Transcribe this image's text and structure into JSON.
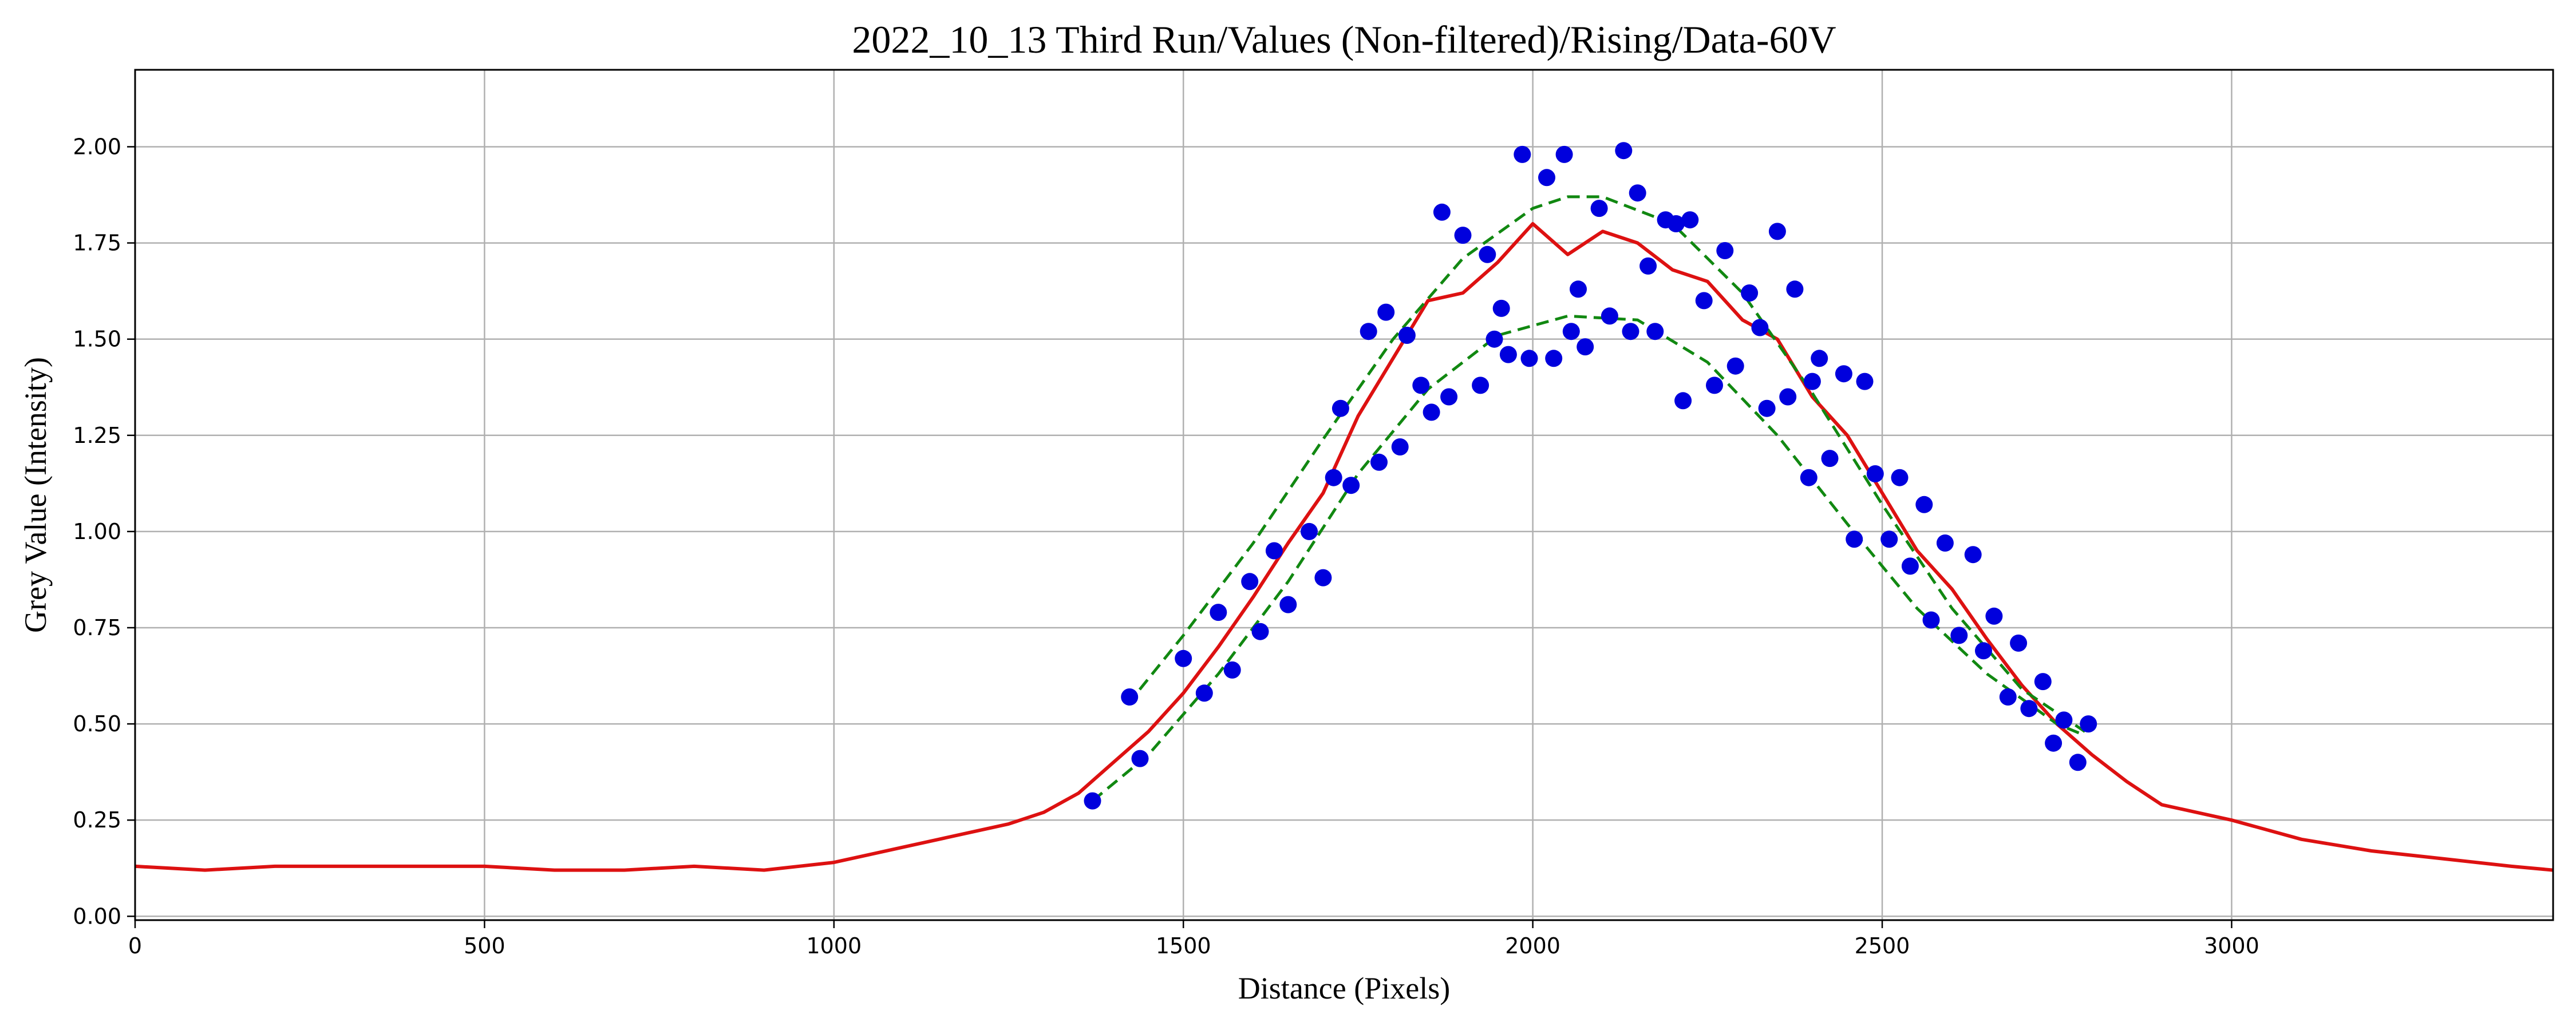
{
  "chart_data": {
    "type": "line",
    "title": "2022_10_13 Third Run/Values (Non-filtered)/Rising/Data-60V",
    "xlabel": "Distance (Pixels)",
    "ylabel": "Grey Value (Intensity)",
    "xlim": [
      0,
      3460
    ],
    "ylim": [
      -0.01,
      2.2
    ],
    "x_ticks": [
      0,
      500,
      1000,
      1500,
      2000,
      2500,
      3000
    ],
    "y_ticks": [
      0.0,
      0.25,
      0.5,
      0.75,
      1.0,
      1.25,
      1.5,
      1.75,
      2.0
    ],
    "y_tick_labels": [
      "0.00",
      "0.25",
      "0.50",
      "0.75",
      "1.00",
      "1.25",
      "1.50",
      "1.75",
      "2.00"
    ],
    "grid": true,
    "legend": "none",
    "series": [
      {
        "kind": "raw",
        "color": "#000000",
        "x": [
          0,
          100,
          200,
          300,
          400,
          500,
          600,
          700,
          800,
          900,
          1000,
          1050,
          1100,
          1150,
          1200,
          1250,
          1300,
          1350,
          1400,
          1450,
          1500,
          1550,
          1600,
          1650,
          1700,
          1750,
          1800,
          1850,
          1900,
          1950,
          2000,
          2050,
          2100,
          2150,
          2200,
          2250,
          2300,
          2350,
          2400,
          2450,
          2500,
          2550,
          2600,
          2650,
          2700,
          2750,
          2800,
          2850,
          2900,
          3000,
          3100,
          3200,
          3300,
          3400,
          3460
        ],
        "y": [
          0.13,
          0.12,
          0.13,
          0.13,
          0.13,
          0.13,
          0.12,
          0.12,
          0.13,
          0.12,
          0.14,
          0.16,
          0.18,
          0.2,
          0.22,
          0.24,
          0.27,
          0.32,
          0.4,
          0.48,
          0.58,
          0.7,
          0.83,
          0.97,
          1.1,
          1.3,
          1.45,
          1.6,
          1.62,
          1.7,
          1.8,
          1.72,
          1.78,
          1.75,
          1.68,
          1.65,
          1.55,
          1.5,
          1.35,
          1.25,
          1.1,
          0.95,
          0.85,
          0.72,
          0.6,
          0.5,
          0.42,
          0.35,
          0.29,
          0.25,
          0.2,
          0.17,
          0.15,
          0.13,
          0.12
        ]
      },
      {
        "kind": "smoothed",
        "color": "#dd1111",
        "x": [
          0,
          100,
          200,
          300,
          400,
          500,
          600,
          700,
          800,
          900,
          1000,
          1050,
          1100,
          1150,
          1200,
          1250,
          1300,
          1350,
          1400,
          1450,
          1500,
          1550,
          1600,
          1650,
          1700,
          1750,
          1800,
          1850,
          1900,
          1950,
          2000,
          2050,
          2100,
          2150,
          2200,
          2250,
          2300,
          2350,
          2400,
          2450,
          2500,
          2550,
          2600,
          2650,
          2700,
          2750,
          2800,
          2850,
          2900,
          3000,
          3100,
          3200,
          3300,
          3400,
          3460
        ],
        "y": [
          0.13,
          0.12,
          0.13,
          0.13,
          0.13,
          0.13,
          0.12,
          0.12,
          0.13,
          0.12,
          0.14,
          0.16,
          0.18,
          0.2,
          0.22,
          0.24,
          0.27,
          0.32,
          0.4,
          0.48,
          0.58,
          0.7,
          0.83,
          0.97,
          1.1,
          1.3,
          1.45,
          1.6,
          1.62,
          1.7,
          1.8,
          1.72,
          1.78,
          1.75,
          1.68,
          1.65,
          1.55,
          1.5,
          1.35,
          1.25,
          1.1,
          0.95,
          0.85,
          0.72,
          0.6,
          0.5,
          0.42,
          0.35,
          0.29,
          0.25,
          0.2,
          0.17,
          0.15,
          0.13,
          0.12
        ]
      },
      {
        "kind": "upper-envelope",
        "color": "#118811",
        "dashed": true,
        "x": [
          1420,
          1500,
          1600,
          1700,
          1800,
          1900,
          2000,
          2050,
          2100,
          2200,
          2300,
          2400,
          2500,
          2600,
          2700,
          2790
        ],
        "y": [
          0.55,
          0.73,
          0.97,
          1.24,
          1.5,
          1.71,
          1.84,
          1.87,
          1.87,
          1.8,
          1.62,
          1.36,
          1.07,
          0.8,
          0.59,
          0.48
        ]
      },
      {
        "kind": "lower-envelope",
        "color": "#118811",
        "dashed": true,
        "x": [
          1370,
          1450,
          1550,
          1650,
          1750,
          1850,
          1950,
          2050,
          2150,
          2250,
          2350,
          2450,
          2550,
          2650,
          2750,
          2790
        ],
        "y": [
          0.3,
          0.42,
          0.63,
          0.87,
          1.15,
          1.37,
          1.51,
          1.56,
          1.55,
          1.44,
          1.25,
          1.02,
          0.8,
          0.63,
          0.5,
          0.47
        ]
      }
    ],
    "peak_markers": {
      "color": "#0000dd",
      "x": [
        1370,
        1423,
        1438,
        1500,
        1530,
        1550,
        1570,
        1595,
        1610,
        1630,
        1650,
        1680,
        1700,
        1715,
        1725,
        1740,
        1765,
        1780,
        1790,
        1810,
        1820,
        1840,
        1855,
        1870,
        1880,
        1900,
        1925,
        1935,
        1945,
        1955,
        1965,
        1985,
        1995,
        2020,
        2030,
        2045,
        2055,
        2065,
        2075,
        2095,
        2110,
        2130,
        2140,
        2150,
        2165,
        2175,
        2190,
        2205,
        2215,
        2225,
        2245,
        2260,
        2275,
        2290,
        2310,
        2325,
        2335,
        2350,
        2365,
        2375,
        2395,
        2400,
        2410,
        2425,
        2445,
        2460,
        2475,
        2490,
        2510,
        2525,
        2540,
        2560,
        2570,
        2590,
        2610,
        2630,
        2645,
        2660,
        2680,
        2695,
        2710,
        2730,
        2745,
        2760,
        2780,
        2795
      ],
      "y": [
        0.3,
        0.57,
        0.41,
        0.67,
        0.58,
        0.79,
        0.64,
        0.87,
        0.74,
        0.95,
        0.81,
        1.0,
        0.88,
        1.14,
        1.32,
        1.12,
        1.52,
        1.18,
        1.57,
        1.22,
        1.51,
        1.38,
        1.31,
        1.83,
        1.35,
        1.77,
        1.38,
        1.72,
        1.5,
        1.58,
        1.46,
        1.98,
        1.45,
        1.92,
        1.45,
        1.98,
        1.52,
        1.63,
        1.48,
        1.84,
        1.56,
        1.99,
        1.52,
        1.88,
        1.69,
        1.52,
        1.81,
        1.8,
        1.34,
        1.81,
        1.6,
        1.38,
        1.73,
        1.43,
        1.62,
        1.53,
        1.32,
        1.78,
        1.35,
        1.63,
        1.14,
        1.39,
        1.45,
        1.19,
        1.41,
        0.98,
        1.39,
        1.15,
        0.98,
        1.14,
        0.91,
        1.07,
        0.77,
        0.97,
        0.73,
        0.94,
        0.69,
        0.78,
        0.57,
        0.71,
        0.54,
        0.61,
        0.45,
        0.51,
        0.4,
        0.5
      ]
    }
  }
}
